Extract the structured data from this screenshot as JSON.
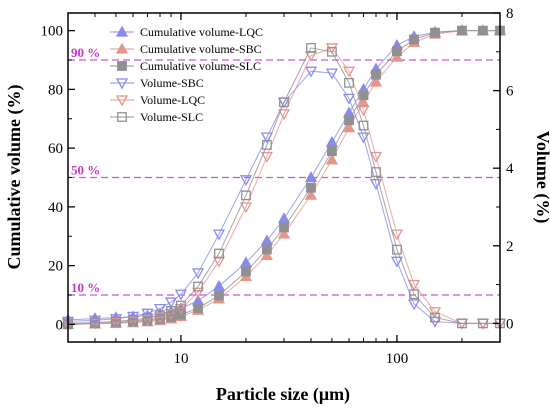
{
  "chart_data": {
    "type": "line",
    "xlabel": "Particle size (μm)",
    "ylabel": "Cumulative volume (%)",
    "y2label": "Volume (%)",
    "x_scale": "log",
    "xlim": [
      3,
      300
    ],
    "ylim": [
      -6,
      106
    ],
    "y2lim": [
      -0.48,
      8
    ],
    "x_tick_labels": [
      "10",
      "100"
    ],
    "y_tick_labels": [
      "0",
      "20",
      "40",
      "60",
      "80",
      "100"
    ],
    "y2_tick_labels": [
      "0",
      "2",
      "4",
      "6",
      "8"
    ],
    "reference_lines": [
      {
        "label": "90 %",
        "y": 90
      },
      {
        "label": "50 %",
        "y": 50
      },
      {
        "label": "10 %",
        "y": 10
      }
    ],
    "legend_position": "top-left",
    "series": [
      {
        "name": "Cumulative volume-LQC",
        "axis": "left",
        "marker": "triangle-up",
        "color": "#8a8aee",
        "filled": true,
        "x": [
          3,
          4,
          5,
          6,
          7,
          8,
          9,
          10,
          12,
          15,
          20,
          25,
          30,
          40,
          50,
          60,
          70,
          80,
          100,
          120,
          150,
          200,
          250,
          300
        ],
        "y": [
          1.5,
          2,
          2.3,
          2.6,
          3,
          3.6,
          4.4,
          5.4,
          8,
          13,
          21,
          28.5,
          36,
          50,
          62,
          72,
          80,
          87,
          95,
          98,
          99.5,
          100,
          100,
          100
        ]
      },
      {
        "name": "Cumulative volume-SBC",
        "axis": "left",
        "marker": "triangle-up",
        "color": "#e6958c",
        "filled": true,
        "x": [
          3,
          4,
          5,
          6,
          7,
          8,
          9,
          10,
          12,
          15,
          20,
          25,
          30,
          40,
          50,
          60,
          70,
          80,
          100,
          120,
          150,
          200,
          250,
          300
        ],
        "y": [
          0,
          0.2,
          0.4,
          0.6,
          0.9,
          1.3,
          1.9,
          2.7,
          4.8,
          8.7,
          16.3,
          23.5,
          30.8,
          44,
          56,
          67,
          75.5,
          82.5,
          91,
          96,
          98.8,
          100,
          100,
          100
        ]
      },
      {
        "name": "Cumulative volume-SLC",
        "axis": "left",
        "marker": "square",
        "color": "#909090",
        "filled": true,
        "x": [
          3,
          4,
          5,
          6,
          7,
          8,
          9,
          10,
          12,
          15,
          20,
          25,
          30,
          40,
          50,
          60,
          70,
          80,
          100,
          120,
          150,
          200,
          250,
          300
        ],
        "y": [
          0,
          0.3,
          0.6,
          0.9,
          1.3,
          1.8,
          2.5,
          3.3,
          5.5,
          9.8,
          18,
          25.5,
          33,
          46.5,
          59,
          69.5,
          78,
          85,
          93,
          97,
          99.3,
          100,
          100,
          100
        ]
      },
      {
        "name": "Volume-SBC",
        "axis": "right",
        "marker": "triangle-down",
        "color": "#8a8aee",
        "filled": false,
        "x": [
          3,
          4,
          5,
          6,
          7,
          8,
          9,
          10,
          12,
          15,
          20,
          25,
          30,
          40,
          50,
          60,
          70,
          80,
          100,
          120,
          150,
          200,
          250,
          300
        ],
        "y": [
          0.05,
          0.08,
          0.12,
          0.18,
          0.26,
          0.38,
          0.55,
          0.75,
          1.3,
          2.3,
          3.7,
          4.8,
          5.7,
          6.5,
          6.45,
          5.8,
          4.8,
          3.6,
          1.6,
          0.5,
          0.05,
          0,
          0,
          0
        ]
      },
      {
        "name": "Volume-LQC",
        "axis": "right",
        "marker": "triangle-down",
        "color": "#e6958c",
        "filled": false,
        "x": [
          3,
          4,
          5,
          6,
          7,
          8,
          9,
          10,
          12,
          15,
          20,
          25,
          30,
          40,
          50,
          60,
          70,
          80,
          100,
          120,
          150,
          200,
          250,
          300
        ],
        "y": [
          0,
          0,
          0.03,
          0.06,
          0.1,
          0.16,
          0.25,
          0.38,
          0.8,
          1.6,
          3,
          4.3,
          5.4,
          6.9,
          7.1,
          6.5,
          5.5,
          4.3,
          2.3,
          1,
          0.3,
          0,
          0,
          0
        ]
      },
      {
        "name": "Volume-SLC",
        "axis": "right",
        "marker": "square",
        "color": "#909090",
        "filled": false,
        "x": [
          3,
          4,
          5,
          6,
          7,
          8,
          9,
          10,
          12,
          15,
          20,
          25,
          30,
          40,
          50,
          60,
          70,
          80,
          100,
          120,
          150,
          200,
          250,
          300
        ],
        "y": [
          0,
          0.02,
          0.05,
          0.09,
          0.14,
          0.21,
          0.32,
          0.46,
          0.95,
          1.8,
          3.3,
          4.6,
          5.7,
          7.1,
          7.0,
          6.2,
          5.1,
          3.9,
          1.9,
          0.75,
          0.15,
          0,
          0,
          0
        ]
      }
    ]
  }
}
